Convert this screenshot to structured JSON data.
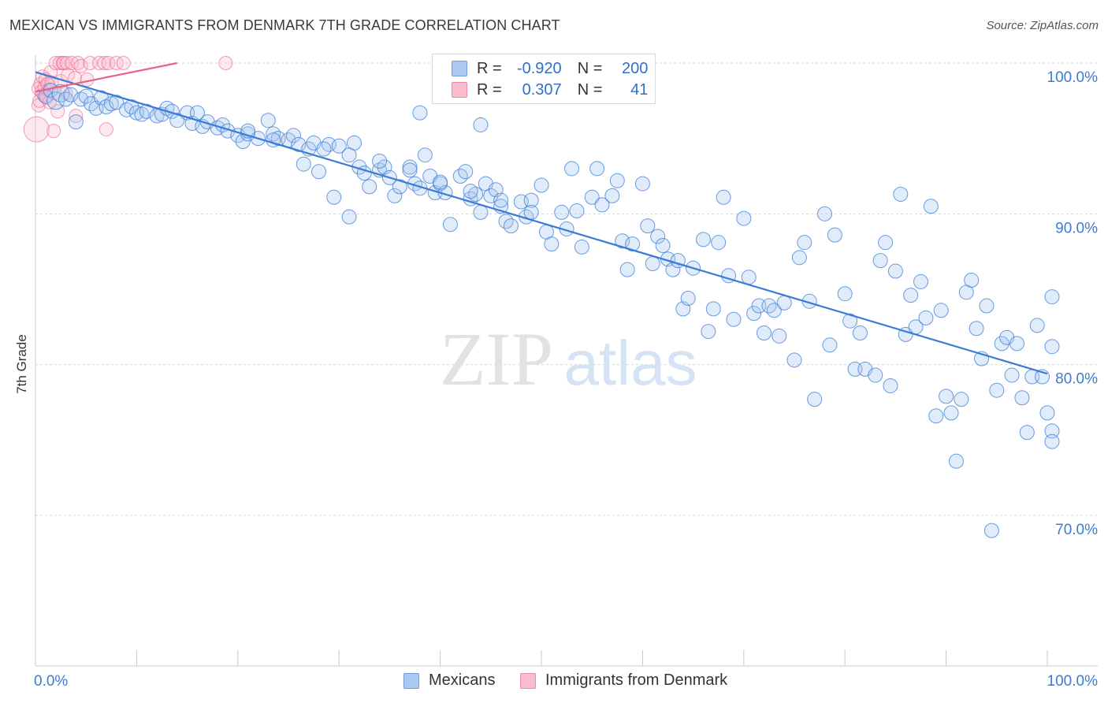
{
  "title": "MEXICAN VS IMMIGRANTS FROM DENMARK 7TH GRADE CORRELATION CHART",
  "source": "Source: ZipAtlas.com",
  "watermark": {
    "zip": "ZIP",
    "atlas": "atlas"
  },
  "legend": {
    "rows": [
      {
        "r_label": "R =",
        "r_value": "-0.920",
        "n_label": "N =",
        "n_value": "200"
      },
      {
        "r_label": "R =",
        "r_value": "0.307",
        "n_label": "N =",
        "n_value": "41"
      }
    ]
  },
  "colors": {
    "blue": "#3a7bd5",
    "blue_fill": "#aac8f0",
    "pink": "#e8638a",
    "pink_fill": "#f8bccd",
    "grid": "#d0d7e0",
    "tick_text": "#3a7bd5"
  },
  "chart_data": {
    "type": "scatter",
    "title": "MEXICAN VS IMMIGRANTS FROM DENMARK 7TH GRADE CORRELATION CHART",
    "xlabel": "",
    "ylabel": "7th Grade",
    "xlim": [
      0,
      100
    ],
    "ylim": [
      60,
      101
    ],
    "x_tick_labels": [
      "0.0%",
      "100.0%"
    ],
    "y_ticks": [
      {
        "value": 100,
        "label": "100.0%"
      },
      {
        "value": 90,
        "label": "90.0%"
      },
      {
        "value": 80,
        "label": "80.0%"
      },
      {
        "value": 70,
        "label": "70.0%"
      }
    ],
    "series": [
      {
        "name": "Mexicans",
        "r": -0.92,
        "n": 200,
        "trend": {
          "x": [
            0,
            100
          ],
          "y": [
            99.4,
            79.4
          ]
        },
        "points": [
          [
            1,
            97.8
          ],
          [
            1.5,
            98.2
          ],
          [
            2,
            97.5
          ],
          [
            2.5,
            98
          ],
          [
            3,
            97.6
          ],
          [
            3.5,
            97.9
          ],
          [
            4,
            96.1
          ],
          [
            4.5,
            97.6
          ],
          [
            5,
            97.8
          ],
          [
            5.5,
            97.3
          ],
          [
            6,
            97
          ],
          [
            6.5,
            97.7
          ],
          [
            7,
            97.1
          ],
          [
            7.5,
            97.3
          ],
          [
            8,
            97.4
          ],
          [
            9,
            96.9
          ],
          [
            9.5,
            97.1
          ],
          [
            10,
            96.7
          ],
          [
            10.5,
            96.6
          ],
          [
            11,
            96.8
          ],
          [
            12,
            96.5
          ],
          [
            12.5,
            96.6
          ],
          [
            13,
            97
          ],
          [
            13.5,
            96.8
          ],
          [
            14,
            96.2
          ],
          [
            15,
            96.7
          ],
          [
            15.5,
            96
          ],
          [
            16,
            96.7
          ],
          [
            16.5,
            95.8
          ],
          [
            17,
            96.1
          ],
          [
            18,
            95.7
          ],
          [
            18.5,
            95.9
          ],
          [
            19,
            95.5
          ],
          [
            20,
            95.2
          ],
          [
            20.5,
            94.8
          ],
          [
            21,
            95.3
          ],
          [
            22,
            95
          ],
          [
            23,
            96.2
          ],
          [
            23.5,
            95.3
          ],
          [
            24,
            95
          ],
          [
            25,
            94.9
          ],
          [
            25.5,
            95.2
          ],
          [
            26,
            94.6
          ],
          [
            26.5,
            93.3
          ],
          [
            27,
            94.3
          ],
          [
            27.5,
            94.7
          ],
          [
            28,
            92.8
          ],
          [
            29,
            94.6
          ],
          [
            29.5,
            91.1
          ],
          [
            30,
            94.5
          ],
          [
            31,
            89.8
          ],
          [
            31.5,
            94.7
          ],
          [
            32,
            93.1
          ],
          [
            32.5,
            92.7
          ],
          [
            33,
            91.8
          ],
          [
            34,
            92.9
          ],
          [
            34.5,
            93.1
          ],
          [
            35,
            92.4
          ],
          [
            35.5,
            91.2
          ],
          [
            36,
            91.8
          ],
          [
            37,
            93.1
          ],
          [
            37.5,
            92
          ],
          [
            38,
            91.7
          ],
          [
            38.5,
            93.9
          ],
          [
            39,
            92.5
          ],
          [
            39.5,
            91.4
          ],
          [
            40,
            92
          ],
          [
            40.5,
            91.4
          ],
          [
            41,
            89.3
          ],
          [
            42,
            92.5
          ],
          [
            42.5,
            92.8
          ],
          [
            43,
            91
          ],
          [
            43.5,
            91.3
          ],
          [
            44,
            90.1
          ],
          [
            44.5,
            92
          ],
          [
            45,
            91.2
          ],
          [
            45.5,
            91.6
          ],
          [
            46,
            90.5
          ],
          [
            46.5,
            89.5
          ],
          [
            47,
            89.2
          ],
          [
            48,
            90.8
          ],
          [
            48.5,
            89.8
          ],
          [
            49,
            90.9
          ],
          [
            50,
            91.9
          ],
          [
            50.5,
            88.8
          ],
          [
            51,
            88
          ],
          [
            52,
            90.1
          ],
          [
            52.5,
            89
          ],
          [
            53,
            93
          ],
          [
            53.5,
            90.2
          ],
          [
            54,
            87.8
          ],
          [
            55,
            91.1
          ],
          [
            55.5,
            93
          ],
          [
            56,
            90.6
          ],
          [
            57,
            91.2
          ],
          [
            57.5,
            92.2
          ],
          [
            58,
            88.2
          ],
          [
            58.5,
            86.3
          ],
          [
            59,
            88
          ],
          [
            60,
            92
          ],
          [
            60.5,
            89.2
          ],
          [
            61,
            86.7
          ],
          [
            61.5,
            88.5
          ],
          [
            62,
            87.9
          ],
          [
            62.5,
            87
          ],
          [
            63,
            86.3
          ],
          [
            63.5,
            86.9
          ],
          [
            64,
            83.7
          ],
          [
            64.5,
            84.4
          ],
          [
            65,
            86.4
          ],
          [
            66,
            88.3
          ],
          [
            66.5,
            82.2
          ],
          [
            67,
            83.7
          ],
          [
            67.5,
            88.1
          ],
          [
            68,
            91.1
          ],
          [
            68.5,
            85.9
          ],
          [
            69,
            83
          ],
          [
            70,
            89.7
          ],
          [
            70.5,
            85.8
          ],
          [
            71,
            83.4
          ],
          [
            71.5,
            83.9
          ],
          [
            72,
            82.1
          ],
          [
            72.5,
            83.9
          ],
          [
            73,
            83.6
          ],
          [
            73.5,
            81.9
          ],
          [
            74,
            84.1
          ],
          [
            75,
            80.3
          ],
          [
            75.5,
            87.1
          ],
          [
            76,
            88.1
          ],
          [
            76.5,
            84.2
          ],
          [
            77,
            77.7
          ],
          [
            78,
            90
          ],
          [
            78.5,
            81.3
          ],
          [
            79,
            88.6
          ],
          [
            80,
            84.7
          ],
          [
            80.5,
            82.9
          ],
          [
            81,
            79.7
          ],
          [
            81.5,
            82.1
          ],
          [
            82,
            79.7
          ],
          [
            83,
            79.3
          ],
          [
            83.5,
            86.9
          ],
          [
            84,
            88.1
          ],
          [
            84.5,
            78.6
          ],
          [
            85,
            86.2
          ],
          [
            85.5,
            91.3
          ],
          [
            86,
            82
          ],
          [
            86.5,
            84.6
          ],
          [
            87,
            82.5
          ],
          [
            87.5,
            85.5
          ],
          [
            88,
            83.1
          ],
          [
            88.5,
            90.5
          ],
          [
            89,
            76.6
          ],
          [
            89.5,
            83.6
          ],
          [
            90,
            77.9
          ],
          [
            90.5,
            76.8
          ],
          [
            91,
            73.6
          ],
          [
            91.5,
            77.7
          ],
          [
            92,
            84.8
          ],
          [
            92.5,
            85.6
          ],
          [
            93,
            82.4
          ],
          [
            93.5,
            80.4
          ],
          [
            94,
            83.9
          ],
          [
            94.5,
            69
          ],
          [
            95,
            78.3
          ],
          [
            95.5,
            81.4
          ],
          [
            96,
            81.8
          ],
          [
            96.5,
            79.3
          ],
          [
            97,
            81.4
          ],
          [
            97.5,
            77.8
          ],
          [
            98,
            75.5
          ],
          [
            98.5,
            79.2
          ],
          [
            99,
            82.6
          ],
          [
            99.5,
            79.2
          ],
          [
            100,
            76.8
          ],
          [
            100.5,
            84.5
          ],
          [
            101,
            81.2
          ],
          [
            101.5,
            75.6
          ],
          [
            102,
            74.9
          ],
          [
            38,
            96.7
          ],
          [
            44,
            95.9
          ],
          [
            21,
            95.5
          ],
          [
            23.5,
            94.9
          ],
          [
            28.5,
            94.3
          ],
          [
            31,
            93.9
          ],
          [
            34,
            93.5
          ],
          [
            37,
            92.9
          ],
          [
            40,
            92.1
          ],
          [
            43,
            91.5
          ],
          [
            46,
            90.9
          ],
          [
            49,
            90.1
          ]
        ]
      },
      {
        "name": "Immigrants from Denmark",
        "r": 0.307,
        "n": 41,
        "trend": {
          "x": [
            0,
            14
          ],
          "y": [
            98.1,
            100
          ]
        },
        "points": [
          [
            0.1,
            95.6
          ],
          [
            0.2,
            97.2
          ],
          [
            0.3,
            98.3
          ],
          [
            0.4,
            97.5
          ],
          [
            0.5,
            98.6
          ],
          [
            0.6,
            98.1
          ],
          [
            0.7,
            99.1
          ],
          [
            0.8,
            97.9
          ],
          [
            0.9,
            98.4
          ],
          [
            1,
            98.9
          ],
          [
            1.1,
            97.7
          ],
          [
            1.2,
            98.6
          ],
          [
            1.3,
            98.2
          ],
          [
            1.4,
            97.4
          ],
          [
            1.5,
            99.4
          ],
          [
            1.6,
            98.7
          ],
          [
            1.8,
            95.5
          ],
          [
            1.9,
            98
          ],
          [
            2,
            100
          ],
          [
            2.2,
            96.8
          ],
          [
            2.4,
            100
          ],
          [
            2.5,
            98.8
          ],
          [
            2.7,
            100
          ],
          [
            2.8,
            100
          ],
          [
            3,
            98
          ],
          [
            3.1,
            100
          ],
          [
            3.2,
            99.2
          ],
          [
            3.6,
            100
          ],
          [
            3.9,
            99
          ],
          [
            4,
            96.5
          ],
          [
            4.2,
            100
          ],
          [
            4.5,
            99.8
          ],
          [
            5.1,
            98.9
          ],
          [
            5.4,
            100
          ],
          [
            6.3,
            100
          ],
          [
            6.8,
            100
          ],
          [
            7,
            95.6
          ],
          [
            7.2,
            100
          ],
          [
            8,
            100
          ],
          [
            8.7,
            100
          ],
          [
            18.8,
            100
          ]
        ]
      }
    ]
  },
  "bottom_legend": {
    "mexicans": "Mexicans",
    "denmark": "Immigrants from Denmark"
  }
}
